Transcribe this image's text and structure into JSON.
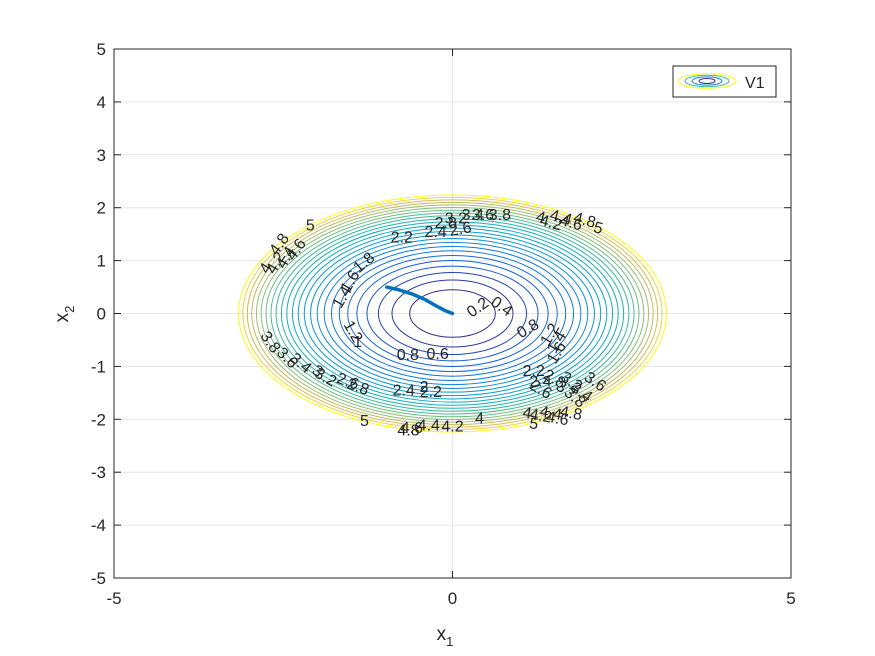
{
  "chart_data": {
    "type": "contour",
    "title": "",
    "xlabel": {
      "base": "x",
      "sub": "1"
    },
    "ylabel": {
      "base": "x",
      "sub": "2"
    },
    "xlim": [
      -5,
      5
    ],
    "ylim": [
      -5,
      5
    ],
    "xticks": [
      "-5",
      "0",
      "5"
    ],
    "yticks": [
      "-5",
      "-4",
      "-3",
      "-2",
      "-1",
      "0",
      "1",
      "2",
      "3",
      "4",
      "5"
    ],
    "grid": true,
    "legend": {
      "position": "top-right",
      "entries": [
        "V1"
      ]
    },
    "contour_levels": {
      "start": 0.2,
      "end": 5.0,
      "step": 0.2
    },
    "contour_max_extent": {
      "x": 3.16,
      "y": 2.24
    },
    "trajectory": [
      {
        "x": -0.97,
        "y": 0.5
      },
      {
        "x": -0.8,
        "y": 0.45
      },
      {
        "x": -0.6,
        "y": 0.37
      },
      {
        "x": -0.4,
        "y": 0.26
      },
      {
        "x": -0.25,
        "y": 0.15
      },
      {
        "x": -0.1,
        "y": 0.05
      },
      {
        "x": 0.0,
        "y": 0.0
      }
    ],
    "colors": {
      "trajectory": "#0072BD",
      "grid": "#e6e6e6",
      "axes": "#262626"
    },
    "contour_labels": [
      {
        "text": "0.2",
        "x": 0.38,
        "y": 0.1,
        "angle": -35
      },
      {
        "text": "0.4",
        "x": 0.72,
        "y": 0.12,
        "angle": 35
      },
      {
        "text": "0.6",
        "x": -0.22,
        "y": -0.78,
        "angle": 0
      },
      {
        "text": "0.8",
        "x": -0.66,
        "y": -0.8,
        "angle": 0
      },
      {
        "text": "0.8",
        "x": 1.12,
        "y": -0.3,
        "angle": -30
      },
      {
        "text": "1",
        "x": -1.4,
        "y": -0.55,
        "angle": 0
      },
      {
        "text": "1.2",
        "x": -1.48,
        "y": -0.35,
        "angle": 60
      },
      {
        "text": "1.4",
        "x": -1.62,
        "y": 0.3,
        "angle": -60
      },
      {
        "text": "1.6",
        "x": -1.5,
        "y": 0.6,
        "angle": -60
      },
      {
        "text": "1.8",
        "x": -1.3,
        "y": 0.95,
        "angle": -40
      },
      {
        "text": "1.2",
        "x": 1.45,
        "y": -0.4,
        "angle": -60
      },
      {
        "text": "1.4",
        "x": 1.55,
        "y": -0.55,
        "angle": -60
      },
      {
        "text": "1.6",
        "x": 1.55,
        "y": -0.75,
        "angle": -60
      },
      {
        "text": "2",
        "x": -0.42,
        "y": -1.4,
        "angle": 0
      },
      {
        "text": "2.2",
        "x": -0.32,
        "y": -1.5,
        "angle": 0
      },
      {
        "text": "2.4",
        "x": -0.72,
        "y": -1.47,
        "angle": 0
      },
      {
        "text": "2.8",
        "x": -1.4,
        "y": -1.4,
        "angle": 20
      },
      {
        "text": "2.6",
        "x": -1.55,
        "y": -1.3,
        "angle": 20
      },
      {
        "text": "3.2",
        "x": -1.88,
        "y": -1.22,
        "angle": 30
      },
      {
        "text": "3",
        "x": -2.0,
        "y": -1.1,
        "angle": 35
      },
      {
        "text": "3.4",
        "x": -2.25,
        "y": -0.95,
        "angle": 40
      },
      {
        "text": "3.6",
        "x": -2.45,
        "y": -0.85,
        "angle": 45
      },
      {
        "text": "3.8",
        "x": -2.7,
        "y": -0.55,
        "angle": 55
      },
      {
        "text": "2.2",
        "x": -0.75,
        "y": 1.42,
        "angle": 0
      },
      {
        "text": "2.4",
        "x": -0.25,
        "y": 1.53,
        "angle": 0
      },
      {
        "text": "2.6",
        "x": 0.12,
        "y": 1.58,
        "angle": -10
      },
      {
        "text": "2.8",
        "x": -0.1,
        "y": 1.7,
        "angle": 0
      },
      {
        "text": "3.2",
        "x": 0.05,
        "y": 1.78,
        "angle": 0
      },
      {
        "text": "3.4",
        "x": 0.3,
        "y": 1.85,
        "angle": 0
      },
      {
        "text": "3.6",
        "x": 0.45,
        "y": 1.85,
        "angle": 0
      },
      {
        "text": "3.8",
        "x": 0.7,
        "y": 1.85,
        "angle": 0
      },
      {
        "text": "2.2",
        "x": 1.2,
        "y": -1.1,
        "angle": 0
      },
      {
        "text": "2.4",
        "x": 1.3,
        "y": -1.3,
        "angle": 0
      },
      {
        "text": "2.6",
        "x": 1.3,
        "y": -1.45,
        "angle": 30
      },
      {
        "text": "2.8",
        "x": 1.5,
        "y": -1.25,
        "angle": 30
      },
      {
        "text": "3",
        "x": 1.6,
        "y": -1.4,
        "angle": 30
      },
      {
        "text": "3.2",
        "x": 1.75,
        "y": -1.3,
        "angle": 35
      },
      {
        "text": "3.4",
        "x": 1.9,
        "y": -1.5,
        "angle": 35
      },
      {
        "text": "3.6",
        "x": 2.1,
        "y": -1.3,
        "angle": 35
      },
      {
        "text": "3.8",
        "x": 1.8,
        "y": -1.6,
        "angle": 40
      },
      {
        "text": "4",
        "x": 0.4,
        "y": -2.0,
        "angle": 0
      },
      {
        "text": "4.2",
        "x": 0.0,
        "y": -2.15,
        "angle": 0
      },
      {
        "text": "4.4",
        "x": -0.35,
        "y": -2.13,
        "angle": 0
      },
      {
        "text": "4.6",
        "x": -0.6,
        "y": -2.18,
        "angle": 0
      },
      {
        "text": "4.8",
        "x": -0.65,
        "y": -2.23,
        "angle": 0
      },
      {
        "text": "5",
        "x": -1.3,
        "y": -2.05,
        "angle": 0
      },
      {
        "text": "4",
        "x": 1.1,
        "y": -1.9,
        "angle": 10
      },
      {
        "text": "4.2",
        "x": 1.3,
        "y": -1.95,
        "angle": 10
      },
      {
        "text": "4.4",
        "x": 1.45,
        "y": -1.9,
        "angle": 10
      },
      {
        "text": "4.6",
        "x": 1.55,
        "y": -2.0,
        "angle": 10
      },
      {
        "text": "4.8",
        "x": 1.75,
        "y": -1.9,
        "angle": 10
      },
      {
        "text": "5",
        "x": 1.2,
        "y": -2.1,
        "angle": 10
      },
      {
        "text": "4",
        "x": -2.75,
        "y": 0.85,
        "angle": -60
      },
      {
        "text": "4.2",
        "x": -2.6,
        "y": 0.95,
        "angle": -60
      },
      {
        "text": "4.4",
        "x": -2.45,
        "y": 1.05,
        "angle": -60
      },
      {
        "text": "4.6",
        "x": -2.3,
        "y": 1.2,
        "angle": -55
      },
      {
        "text": "4.8",
        "x": -2.55,
        "y": 1.3,
        "angle": -55
      },
      {
        "text": "5",
        "x": -2.1,
        "y": 1.65,
        "angle": 0
      },
      {
        "text": "4",
        "x": 1.3,
        "y": 1.8,
        "angle": 15
      },
      {
        "text": "4.2",
        "x": 1.45,
        "y": 1.7,
        "angle": 15
      },
      {
        "text": "4.4",
        "x": 1.6,
        "y": 1.8,
        "angle": 15
      },
      {
        "text": "4.6",
        "x": 1.75,
        "y": 1.7,
        "angle": 15
      },
      {
        "text": "4.8",
        "x": 1.95,
        "y": 1.75,
        "angle": 15
      },
      {
        "text": "5",
        "x": 2.15,
        "y": 1.6,
        "angle": 15
      }
    ]
  }
}
